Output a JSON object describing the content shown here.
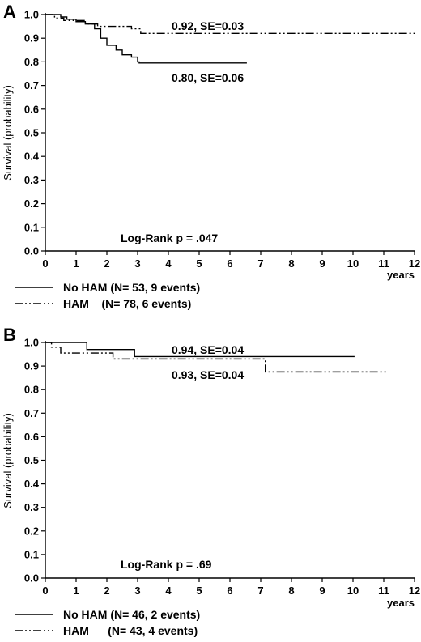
{
  "chart_data": [
    {
      "type": "line",
      "panel_label": "A",
      "ylabel": "Survival (probability)",
      "xlabel": "years",
      "xlim": [
        0,
        12
      ],
      "ylim": [
        0,
        1.0
      ],
      "x_ticks": [
        "0",
        "1",
        "2",
        "3",
        "4",
        "5",
        "6",
        "7",
        "8",
        "9",
        "10",
        "11",
        "12"
      ],
      "y_ticks": [
        "0.0",
        "0.1",
        "0.2",
        "0.3",
        "0.4",
        "0.5",
        "0.6",
        "0.7",
        "0.8",
        "0.9",
        "1.0"
      ],
      "series": [
        {
          "name": "No HAM (N= 53, 9 events)",
          "style": "solid",
          "x": [
            0,
            0.5,
            0.7,
            1.0,
            1.3,
            1.6,
            1.8,
            2.0,
            2.3,
            2.5,
            2.8,
            3.0,
            3.05,
            6.55
          ],
          "y": [
            1.0,
            0.99,
            0.98,
            0.97,
            0.96,
            0.94,
            0.9,
            0.87,
            0.85,
            0.83,
            0.82,
            0.8,
            0.795,
            0.795
          ]
        },
        {
          "name": "HAM    (N= 78, 6 events)",
          "style": "dash-dot-dot",
          "x": [
            0,
            0.3,
            0.6,
            1.3,
            1.7,
            2.8,
            3.1,
            12.0
          ],
          "y": [
            1.0,
            0.985,
            0.975,
            0.96,
            0.95,
            0.94,
            0.92,
            0.92
          ]
        }
      ],
      "annotations": [
        "0.92, SE=0.03",
        "0.80, SE=0.06",
        "Log-Rank p = .047"
      ]
    },
    {
      "type": "line",
      "panel_label": "B",
      "ylabel": "Survival (probability)",
      "xlabel": "years",
      "xlim": [
        0,
        12
      ],
      "ylim": [
        0,
        1.0
      ],
      "x_ticks": [
        "0",
        "1",
        "2",
        "3",
        "4",
        "5",
        "6",
        "7",
        "8",
        "9",
        "10",
        "11",
        "12"
      ],
      "y_ticks": [
        "0.0",
        "0.1",
        "0.2",
        "0.3",
        "0.4",
        "0.5",
        "0.6",
        "0.7",
        "0.8",
        "0.9",
        "1.0"
      ],
      "series": [
        {
          "name": "No HAM (N= 46, 2 events)",
          "style": "solid",
          "x": [
            0,
            1.35,
            2.9,
            10.05
          ],
          "y": [
            1.0,
            0.97,
            0.94,
            0.94
          ]
        },
        {
          "name": "HAM      (N= 43, 4 events)",
          "style": "dash-dot-dot",
          "x": [
            0,
            0.2,
            0.5,
            2.2,
            7.05,
            7.15,
            11.1
          ],
          "y": [
            1.0,
            0.98,
            0.955,
            0.93,
            0.93,
            0.875,
            0.875
          ]
        }
      ],
      "annotations": [
        "0.94, SE=0.04",
        "0.93, SE=0.04",
        "Log-Rank p = .69"
      ]
    }
  ]
}
